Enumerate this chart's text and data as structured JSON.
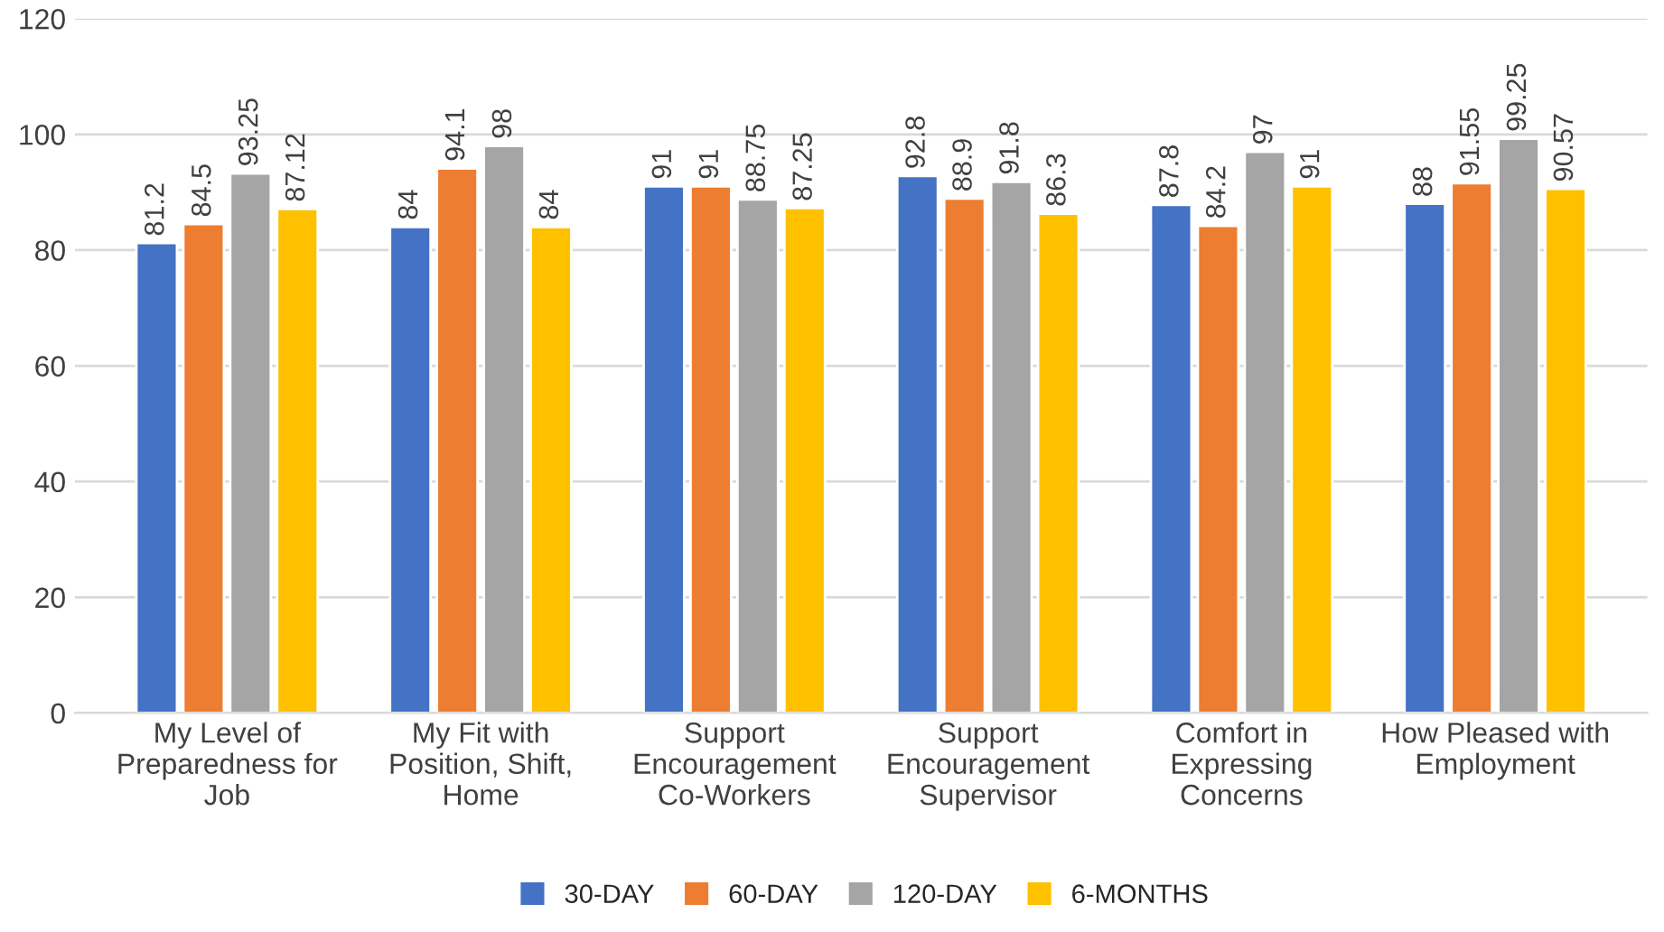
{
  "chart_data": {
    "type": "bar",
    "categories": [
      "My Level of\nPreparedness for\nJob",
      "My Fit with\nPosition, Shift,\nHome",
      "Support\nEncouragement\nCo-Workers",
      "Support\nEncouragement\nSupervisor",
      "Comfort in\nExpressing\nConcerns",
      "How Pleased with\nEmployment"
    ],
    "series": [
      {
        "name": "30-DAY",
        "color": "#4472c4",
        "values": [
          81.2,
          84,
          91,
          92.8,
          87.8,
          88
        ]
      },
      {
        "name": "60-DAY",
        "color": "#ed7d31",
        "values": [
          84.5,
          94.1,
          91,
          88.9,
          84.2,
          91.55
        ]
      },
      {
        "name": "120-DAY",
        "color": "#a5a5a5",
        "values": [
          93.25,
          98,
          88.75,
          91.8,
          97,
          99.25
        ]
      },
      {
        "name": "6-MONTHS",
        "color": "#ffc000",
        "values": [
          87.12,
          84,
          87.25,
          86.3,
          91,
          90.57
        ]
      }
    ],
    "ylim": [
      0,
      120
    ],
    "yticks": [
      0,
      20,
      40,
      60,
      80,
      100,
      120
    ],
    "grid": "y",
    "legend": "bottom",
    "data_labels": true
  }
}
